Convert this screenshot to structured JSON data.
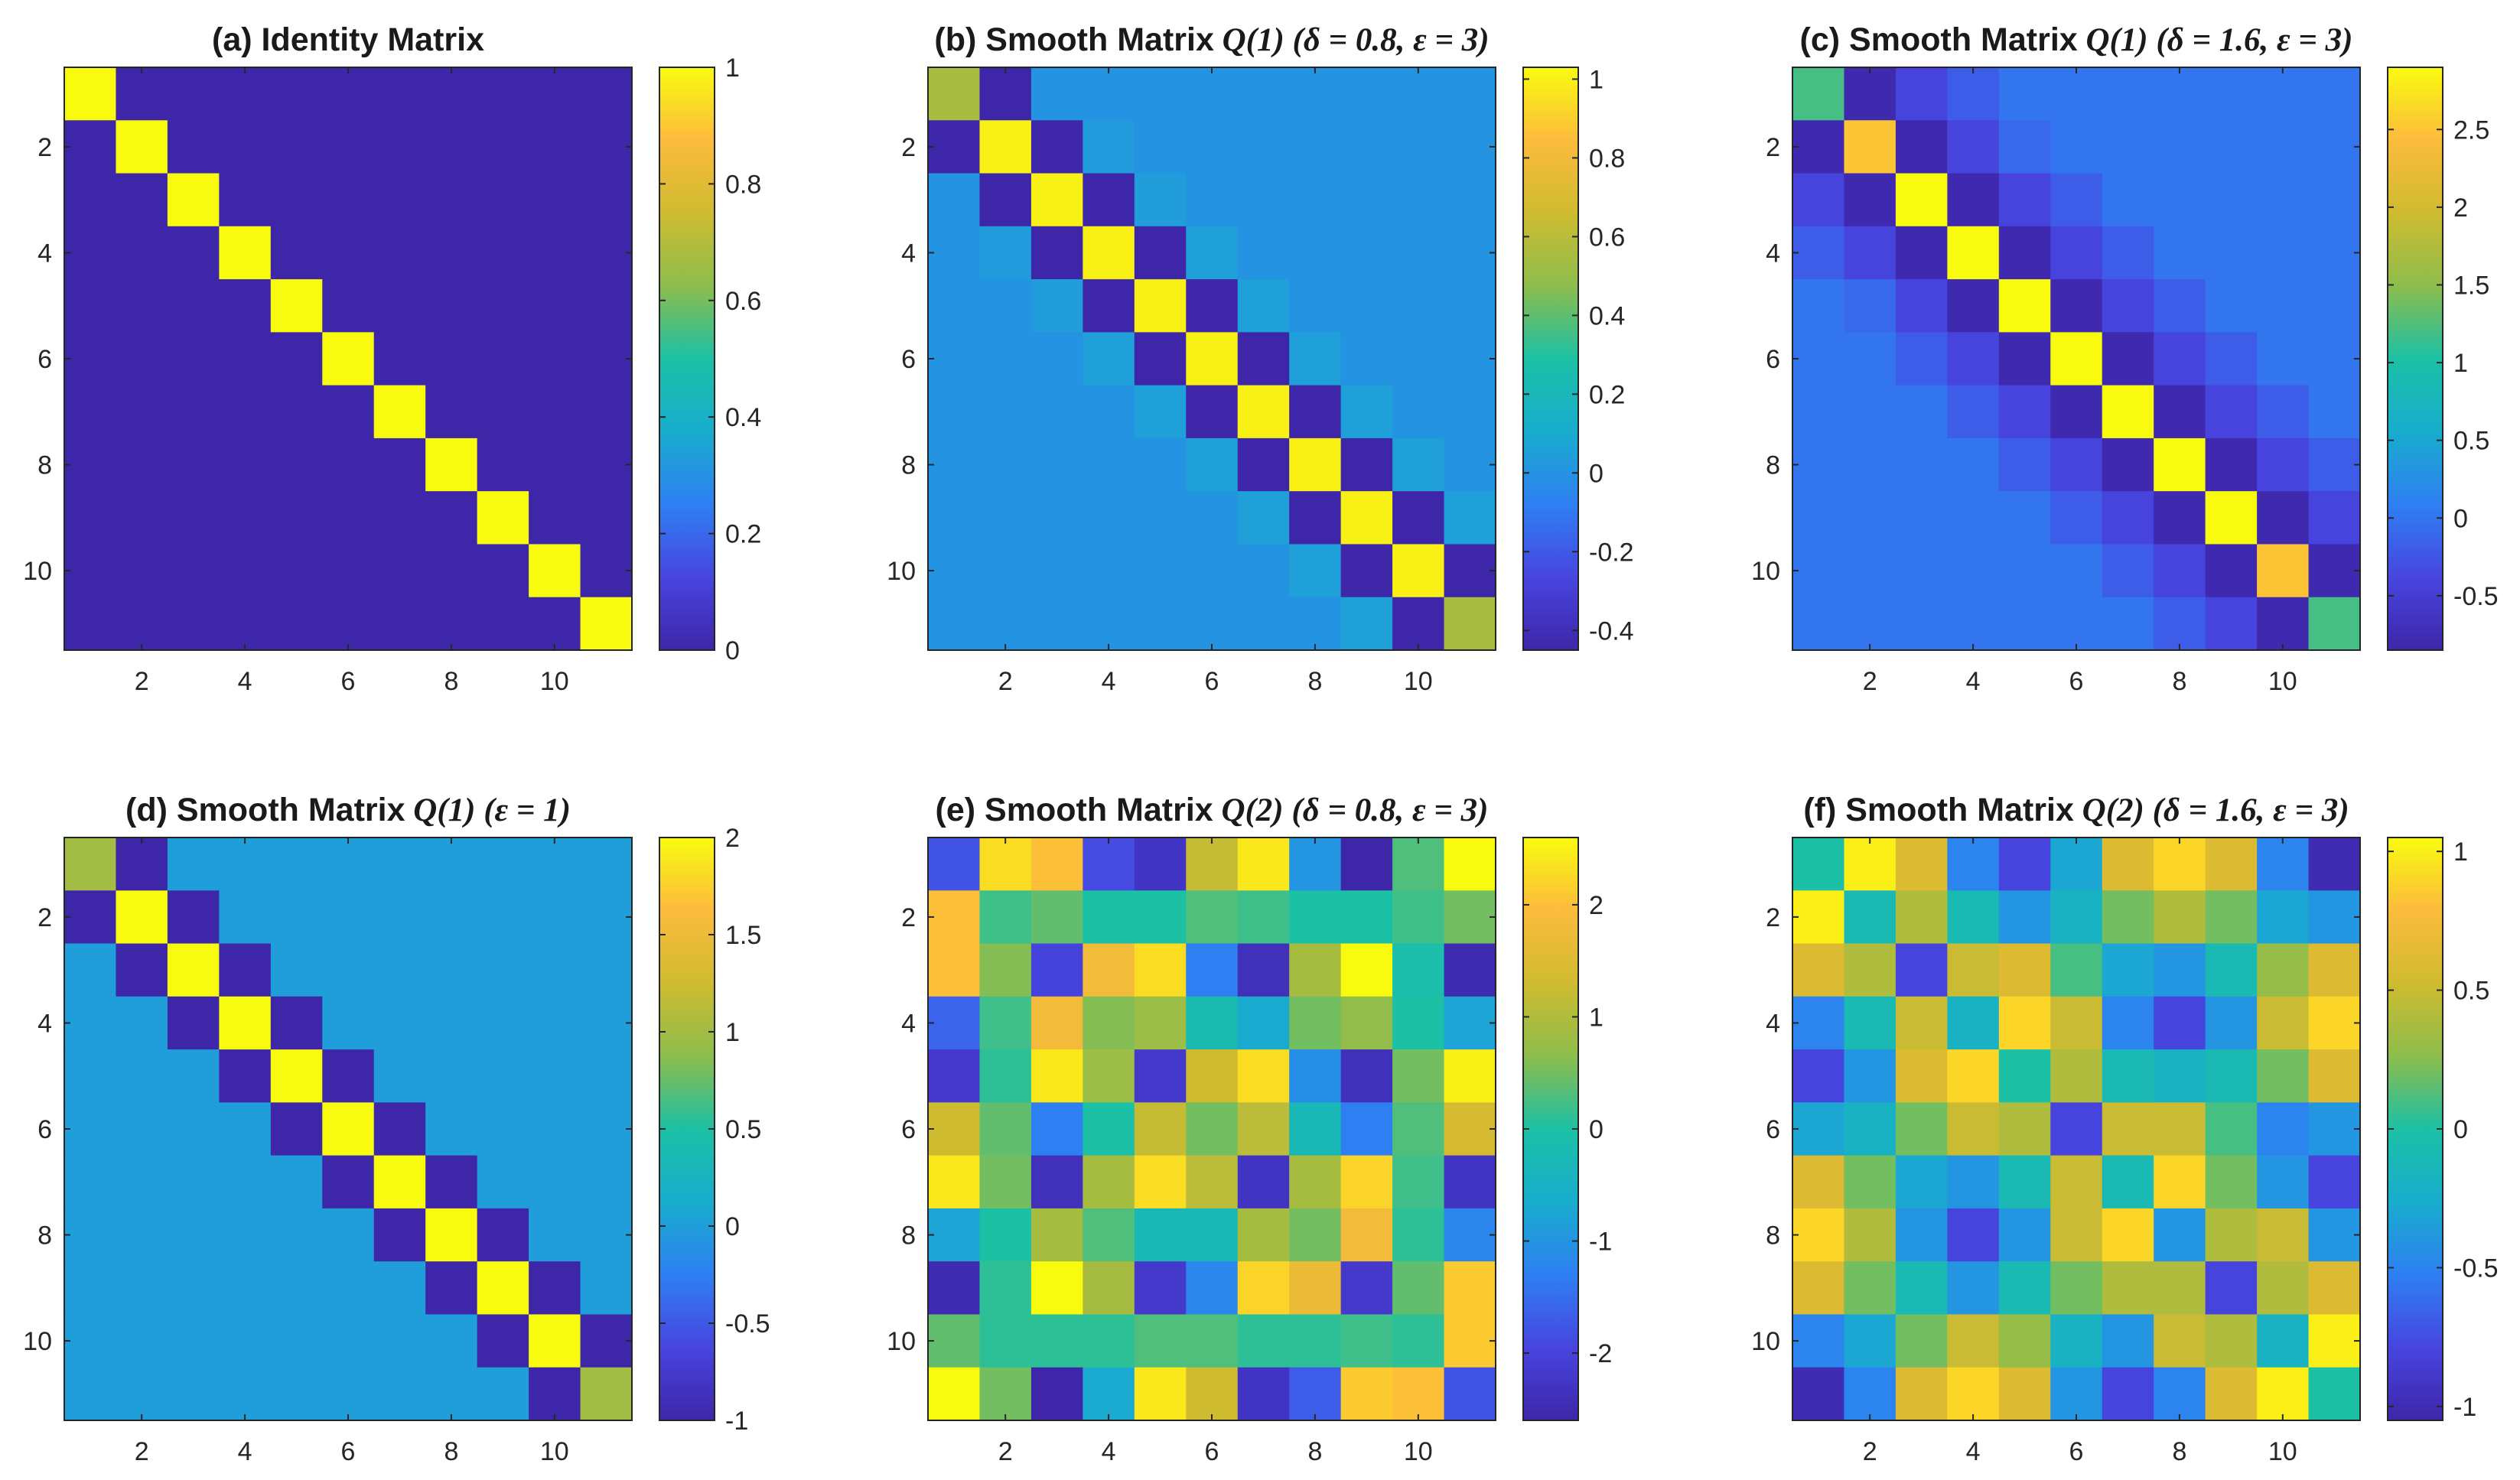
{
  "figure": {
    "colormap": [
      "#3e26a8",
      "#4745e0",
      "#2e80f2",
      "#18adcd",
      "#1cc0a5",
      "#8dbd4c",
      "#cfbb30",
      "#fcbb3c",
      "#f9fb0e"
    ],
    "panel_order": [
      "a",
      "b",
      "c",
      "d",
      "e",
      "f"
    ]
  },
  "chart_data": [
    {
      "id": "a",
      "type": "heatmap",
      "title": "(a) Identity Matrix",
      "title_math": "",
      "xticks": [
        2,
        4,
        6,
        8,
        10
      ],
      "yticks": [
        2,
        4,
        6,
        8,
        10
      ],
      "clim": [
        0,
        1
      ],
      "colorbar_ticks": [
        "0",
        "0.2",
        "0.4",
        "0.6",
        "0.8",
        "1"
      ],
      "colorbar_tick_values": [
        0,
        0.2,
        0.4,
        0.6,
        0.8,
        1
      ],
      "z": [
        [
          1,
          0,
          0,
          0,
          0,
          0,
          0,
          0,
          0,
          0,
          0
        ],
        [
          0,
          1,
          0,
          0,
          0,
          0,
          0,
          0,
          0,
          0,
          0
        ],
        [
          0,
          0,
          1,
          0,
          0,
          0,
          0,
          0,
          0,
          0,
          0
        ],
        [
          0,
          0,
          0,
          1,
          0,
          0,
          0,
          0,
          0,
          0,
          0
        ],
        [
          0,
          0,
          0,
          0,
          1,
          0,
          0,
          0,
          0,
          0,
          0
        ],
        [
          0,
          0,
          0,
          0,
          0,
          1,
          0,
          0,
          0,
          0,
          0
        ],
        [
          0,
          0,
          0,
          0,
          0,
          0,
          1,
          0,
          0,
          0,
          0
        ],
        [
          0,
          0,
          0,
          0,
          0,
          0,
          0,
          1,
          0,
          0,
          0
        ],
        [
          0,
          0,
          0,
          0,
          0,
          0,
          0,
          0,
          1,
          0,
          0
        ],
        [
          0,
          0,
          0,
          0,
          0,
          0,
          0,
          0,
          0,
          1,
          0
        ],
        [
          0,
          0,
          0,
          0,
          0,
          0,
          0,
          0,
          0,
          0,
          1
        ]
      ]
    },
    {
      "id": "b",
      "type": "heatmap",
      "title": "(b) Smooth Matrix",
      "title_math": "Q(1) (δ = 0.8, ε = 3)",
      "xticks": [
        2,
        4,
        6,
        8,
        10
      ],
      "yticks": [
        2,
        4,
        6,
        8,
        10
      ],
      "clim": [
        -0.45,
        1.03
      ],
      "colorbar_ticks": [
        "-0.4",
        "-0.2",
        "0",
        "0.2",
        "0.4",
        "0.6",
        "0.8",
        "1"
      ],
      "colorbar_tick_values": [
        -0.4,
        -0.2,
        0,
        0.2,
        0.4,
        0.6,
        0.8,
        1
      ],
      "z": [
        [
          0.55,
          -0.45,
          0.0,
          0.0,
          0.0,
          0.0,
          0.0,
          0.0,
          0.0,
          0.0,
          0.0
        ],
        [
          -0.45,
          1.0,
          -0.45,
          0.03,
          0.0,
          0.0,
          0.0,
          0.0,
          0.0,
          0.0,
          0.0
        ],
        [
          0.0,
          -0.45,
          1.0,
          -0.45,
          0.04,
          0.0,
          0.0,
          0.0,
          0.0,
          0.0,
          0.0
        ],
        [
          0.0,
          0.03,
          -0.45,
          1.0,
          -0.45,
          0.05,
          0.0,
          0.0,
          0.0,
          0.0,
          0.0
        ],
        [
          0.0,
          0.0,
          0.04,
          -0.45,
          1.0,
          -0.45,
          0.05,
          0.0,
          0.0,
          0.0,
          0.0
        ],
        [
          0.0,
          0.0,
          0.0,
          0.05,
          -0.45,
          1.0,
          -0.45,
          0.05,
          0.0,
          0.0,
          0.0
        ],
        [
          0.0,
          0.0,
          0.0,
          0.0,
          0.05,
          -0.45,
          1.0,
          -0.45,
          0.05,
          0.0,
          0.0
        ],
        [
          0.0,
          0.0,
          0.0,
          0.0,
          0.0,
          0.05,
          -0.45,
          1.0,
          -0.45,
          0.05,
          0.0
        ],
        [
          0.0,
          0.0,
          0.0,
          0.0,
          0.0,
          0.0,
          0.05,
          -0.45,
          1.0,
          -0.45,
          0.05
        ],
        [
          0.0,
          0.0,
          0.0,
          0.0,
          0.0,
          0.0,
          0.0,
          0.05,
          -0.45,
          1.0,
          -0.45
        ],
        [
          0.0,
          0.0,
          0.0,
          0.0,
          0.0,
          0.0,
          0.0,
          0.0,
          0.05,
          -0.45,
          0.55
        ]
      ]
    },
    {
      "id": "c",
      "type": "heatmap",
      "title": "(c) Smooth Matrix",
      "title_math": "Q(1) (δ = 1.6, ε = 3)",
      "xticks": [
        2,
        4,
        6,
        8,
        10
      ],
      "yticks": [
        2,
        4,
        6,
        8,
        10
      ],
      "clim": [
        -0.85,
        2.9
      ],
      "colorbar_ticks": [
        "-0.5",
        "0",
        "0.5",
        "1",
        "1.5",
        "2",
        "2.5"
      ],
      "colorbar_tick_values": [
        -0.5,
        0,
        0.5,
        1,
        1.5,
        2,
        2.5
      ],
      "z": [
        [
          1.2,
          -0.8,
          -0.4,
          -0.2,
          0.0,
          0.0,
          0.0,
          0.0,
          0.0,
          0.0,
          0.0
        ],
        [
          -0.8,
          2.5,
          -0.8,
          -0.4,
          -0.1,
          0.0,
          0.0,
          0.0,
          0.0,
          0.0,
          0.0
        ],
        [
          -0.4,
          -0.8,
          2.9,
          -0.8,
          -0.4,
          -0.2,
          0.0,
          0.0,
          0.0,
          0.0,
          0.0
        ],
        [
          -0.2,
          -0.4,
          -0.8,
          2.9,
          -0.8,
          -0.4,
          -0.2,
          0.0,
          0.0,
          0.0,
          0.0
        ],
        [
          0.0,
          -0.1,
          -0.4,
          -0.8,
          2.9,
          -0.8,
          -0.4,
          -0.2,
          0.0,
          0.0,
          0.0
        ],
        [
          0.0,
          0.0,
          -0.2,
          -0.4,
          -0.8,
          2.9,
          -0.8,
          -0.4,
          -0.2,
          0.0,
          0.0
        ],
        [
          0.0,
          0.0,
          0.0,
          -0.2,
          -0.4,
          -0.8,
          2.9,
          -0.8,
          -0.4,
          -0.2,
          0.0
        ],
        [
          0.0,
          0.0,
          0.0,
          0.0,
          -0.2,
          -0.4,
          -0.8,
          2.9,
          -0.8,
          -0.4,
          -0.2
        ],
        [
          0.0,
          0.0,
          0.0,
          0.0,
          0.0,
          -0.2,
          -0.4,
          -0.8,
          2.9,
          -0.8,
          -0.4
        ],
        [
          0.0,
          0.0,
          0.0,
          0.0,
          0.0,
          0.0,
          -0.2,
          -0.4,
          -0.8,
          2.5,
          -0.8
        ],
        [
          0.0,
          0.0,
          0.0,
          0.0,
          0.0,
          0.0,
          0.0,
          -0.2,
          -0.4,
          -0.8,
          1.2
        ]
      ]
    },
    {
      "id": "d",
      "type": "heatmap",
      "title": "(d) Smooth Matrix",
      "title_math": "Q(1) (ε = 1)",
      "xticks": [
        2,
        4,
        6,
        8,
        10
      ],
      "yticks": [
        2,
        4,
        6,
        8,
        10
      ],
      "clim": [
        -1,
        2
      ],
      "colorbar_ticks": [
        "-1",
        "-0.5",
        "0",
        "0.5",
        "1",
        "1.5",
        "2"
      ],
      "colorbar_tick_values": [
        -1,
        -0.5,
        0,
        0.5,
        1,
        1.5,
        2
      ],
      "z": [
        [
          1,
          -1,
          0,
          0,
          0,
          0,
          0,
          0,
          0,
          0,
          0
        ],
        [
          -1,
          2,
          -1,
          0,
          0,
          0,
          0,
          0,
          0,
          0,
          0
        ],
        [
          0,
          -1,
          2,
          -1,
          0,
          0,
          0,
          0,
          0,
          0,
          0
        ],
        [
          0,
          0,
          -1,
          2,
          -1,
          0,
          0,
          0,
          0,
          0,
          0
        ],
        [
          0,
          0,
          0,
          -1,
          2,
          -1,
          0,
          0,
          0,
          0,
          0
        ],
        [
          0,
          0,
          0,
          0,
          -1,
          2,
          -1,
          0,
          0,
          0,
          0
        ],
        [
          0,
          0,
          0,
          0,
          0,
          -1,
          2,
          -1,
          0,
          0,
          0
        ],
        [
          0,
          0,
          0,
          0,
          0,
          0,
          -1,
          2,
          -1,
          0,
          0
        ],
        [
          0,
          0,
          0,
          0,
          0,
          0,
          0,
          -1,
          2,
          -1,
          0
        ],
        [
          0,
          0,
          0,
          0,
          0,
          0,
          0,
          0,
          -1,
          2,
          -1
        ],
        [
          0,
          0,
          0,
          0,
          0,
          0,
          0,
          0,
          0,
          -1,
          1
        ]
      ]
    },
    {
      "id": "e",
      "type": "heatmap",
      "title": "(e) Smooth Matrix",
      "title_math": "Q(2) (δ = 0.8, ε = 3)",
      "xticks": [
        2,
        4,
        6,
        8,
        10
      ],
      "yticks": [
        2,
        4,
        6,
        8,
        10
      ],
      "clim": [
        -2.6,
        2.6
      ],
      "colorbar_ticks": [
        "-2",
        "-1",
        "0",
        "1",
        "2"
      ],
      "colorbar_tick_values": [
        -2,
        -1,
        0,
        1,
        2
      ],
      "z": [
        [
          -1.8,
          2.3,
          2.0,
          -1.9,
          -2.3,
          1.2,
          2.4,
          -1.0,
          -2.6,
          0.3,
          2.6
        ],
        [
          2.0,
          0.2,
          0.4,
          0.0,
          0.0,
          0.3,
          0.2,
          0.0,
          0.0,
          0.2,
          0.5
        ],
        [
          2.0,
          0.6,
          -2.0,
          1.8,
          2.3,
          -1.3,
          -2.4,
          0.9,
          2.6,
          -0.1,
          -2.5
        ],
        [
          -1.6,
          0.2,
          1.8,
          0.6,
          0.8,
          -0.2,
          -0.7,
          0.5,
          0.7,
          0.0,
          -0.8
        ],
        [
          -2.2,
          0.1,
          2.4,
          0.8,
          -2.2,
          1.3,
          2.3,
          -1.1,
          -2.4,
          0.5,
          2.5
        ],
        [
          1.3,
          0.4,
          -1.3,
          0.0,
          1.2,
          0.5,
          1.1,
          -0.3,
          -1.3,
          0.3,
          1.4
        ],
        [
          2.4,
          0.5,
          -2.4,
          0.9,
          2.3,
          1.1,
          -2.3,
          0.9,
          2.2,
          0.2,
          -2.3
        ],
        [
          -0.8,
          0.0,
          0.9,
          0.3,
          -0.3,
          -0.3,
          0.9,
          0.5,
          1.8,
          0.1,
          -1.2
        ],
        [
          -2.5,
          0.1,
          2.6,
          0.9,
          -2.2,
          -1.2,
          2.2,
          1.7,
          -2.2,
          0.4,
          2.1
        ],
        [
          0.4,
          0.1,
          0.1,
          0.1,
          0.3,
          0.3,
          0.1,
          0.1,
          0.2,
          0.1,
          2.1
        ],
        [
          2.6,
          0.5,
          -2.6,
          -0.7,
          2.4,
          1.3,
          -2.3,
          -1.7,
          2.1,
          2.0,
          -1.8
        ]
      ]
    },
    {
      "id": "f",
      "type": "heatmap",
      "title": "(f) Smooth Matrix",
      "title_math": "Q(2) (δ = 1.6, ε = 3)",
      "xticks": [
        2,
        4,
        6,
        8,
        10
      ],
      "yticks": [
        2,
        4,
        6,
        8,
        10
      ],
      "clim": [
        -1.05,
        1.05
      ],
      "colorbar_ticks": [
        "-1",
        "-0.5",
        "0",
        "0.5",
        "1"
      ],
      "colorbar_tick_values": [
        -1,
        -0.5,
        0,
        0.5,
        1
      ],
      "z": [
        [
          0.0,
          1.0,
          0.6,
          -0.5,
          -0.8,
          -0.3,
          0.6,
          0.9,
          0.6,
          -0.5,
          -1.0
        ],
        [
          1.0,
          -0.1,
          0.4,
          -0.1,
          -0.4,
          -0.2,
          0.2,
          0.4,
          0.2,
          -0.3,
          -0.4
        ],
        [
          0.6,
          0.4,
          -0.8,
          0.5,
          0.6,
          0.1,
          -0.3,
          -0.4,
          -0.1,
          0.3,
          0.6
        ],
        [
          -0.5,
          -0.1,
          0.5,
          -0.2,
          0.9,
          0.5,
          -0.5,
          -0.8,
          -0.4,
          0.5,
          0.9
        ],
        [
          -0.8,
          -0.4,
          0.6,
          0.9,
          0.0,
          0.4,
          -0.1,
          -0.2,
          -0.1,
          0.2,
          0.6
        ],
        [
          -0.3,
          -0.2,
          0.2,
          0.5,
          0.4,
          -0.8,
          0.5,
          0.5,
          0.1,
          -0.5,
          -0.4
        ],
        [
          0.6,
          0.2,
          -0.3,
          -0.4,
          -0.1,
          0.5,
          -0.1,
          0.9,
          0.2,
          -0.4,
          -0.8
        ],
        [
          0.9,
          0.4,
          -0.4,
          -0.8,
          -0.4,
          0.5,
          0.9,
          -0.4,
          0.4,
          0.5,
          -0.4
        ],
        [
          0.6,
          0.2,
          -0.1,
          -0.4,
          -0.1,
          0.2,
          0.4,
          0.4,
          -0.8,
          0.4,
          0.6
        ],
        [
          -0.5,
          -0.3,
          0.2,
          0.5,
          0.3,
          -0.2,
          -0.4,
          0.5,
          0.4,
          -0.2,
          1.0
        ],
        [
          -1.0,
          -0.5,
          0.6,
          0.9,
          0.6,
          -0.4,
          -0.8,
          -0.5,
          0.6,
          1.0,
          0.0
        ]
      ]
    }
  ]
}
